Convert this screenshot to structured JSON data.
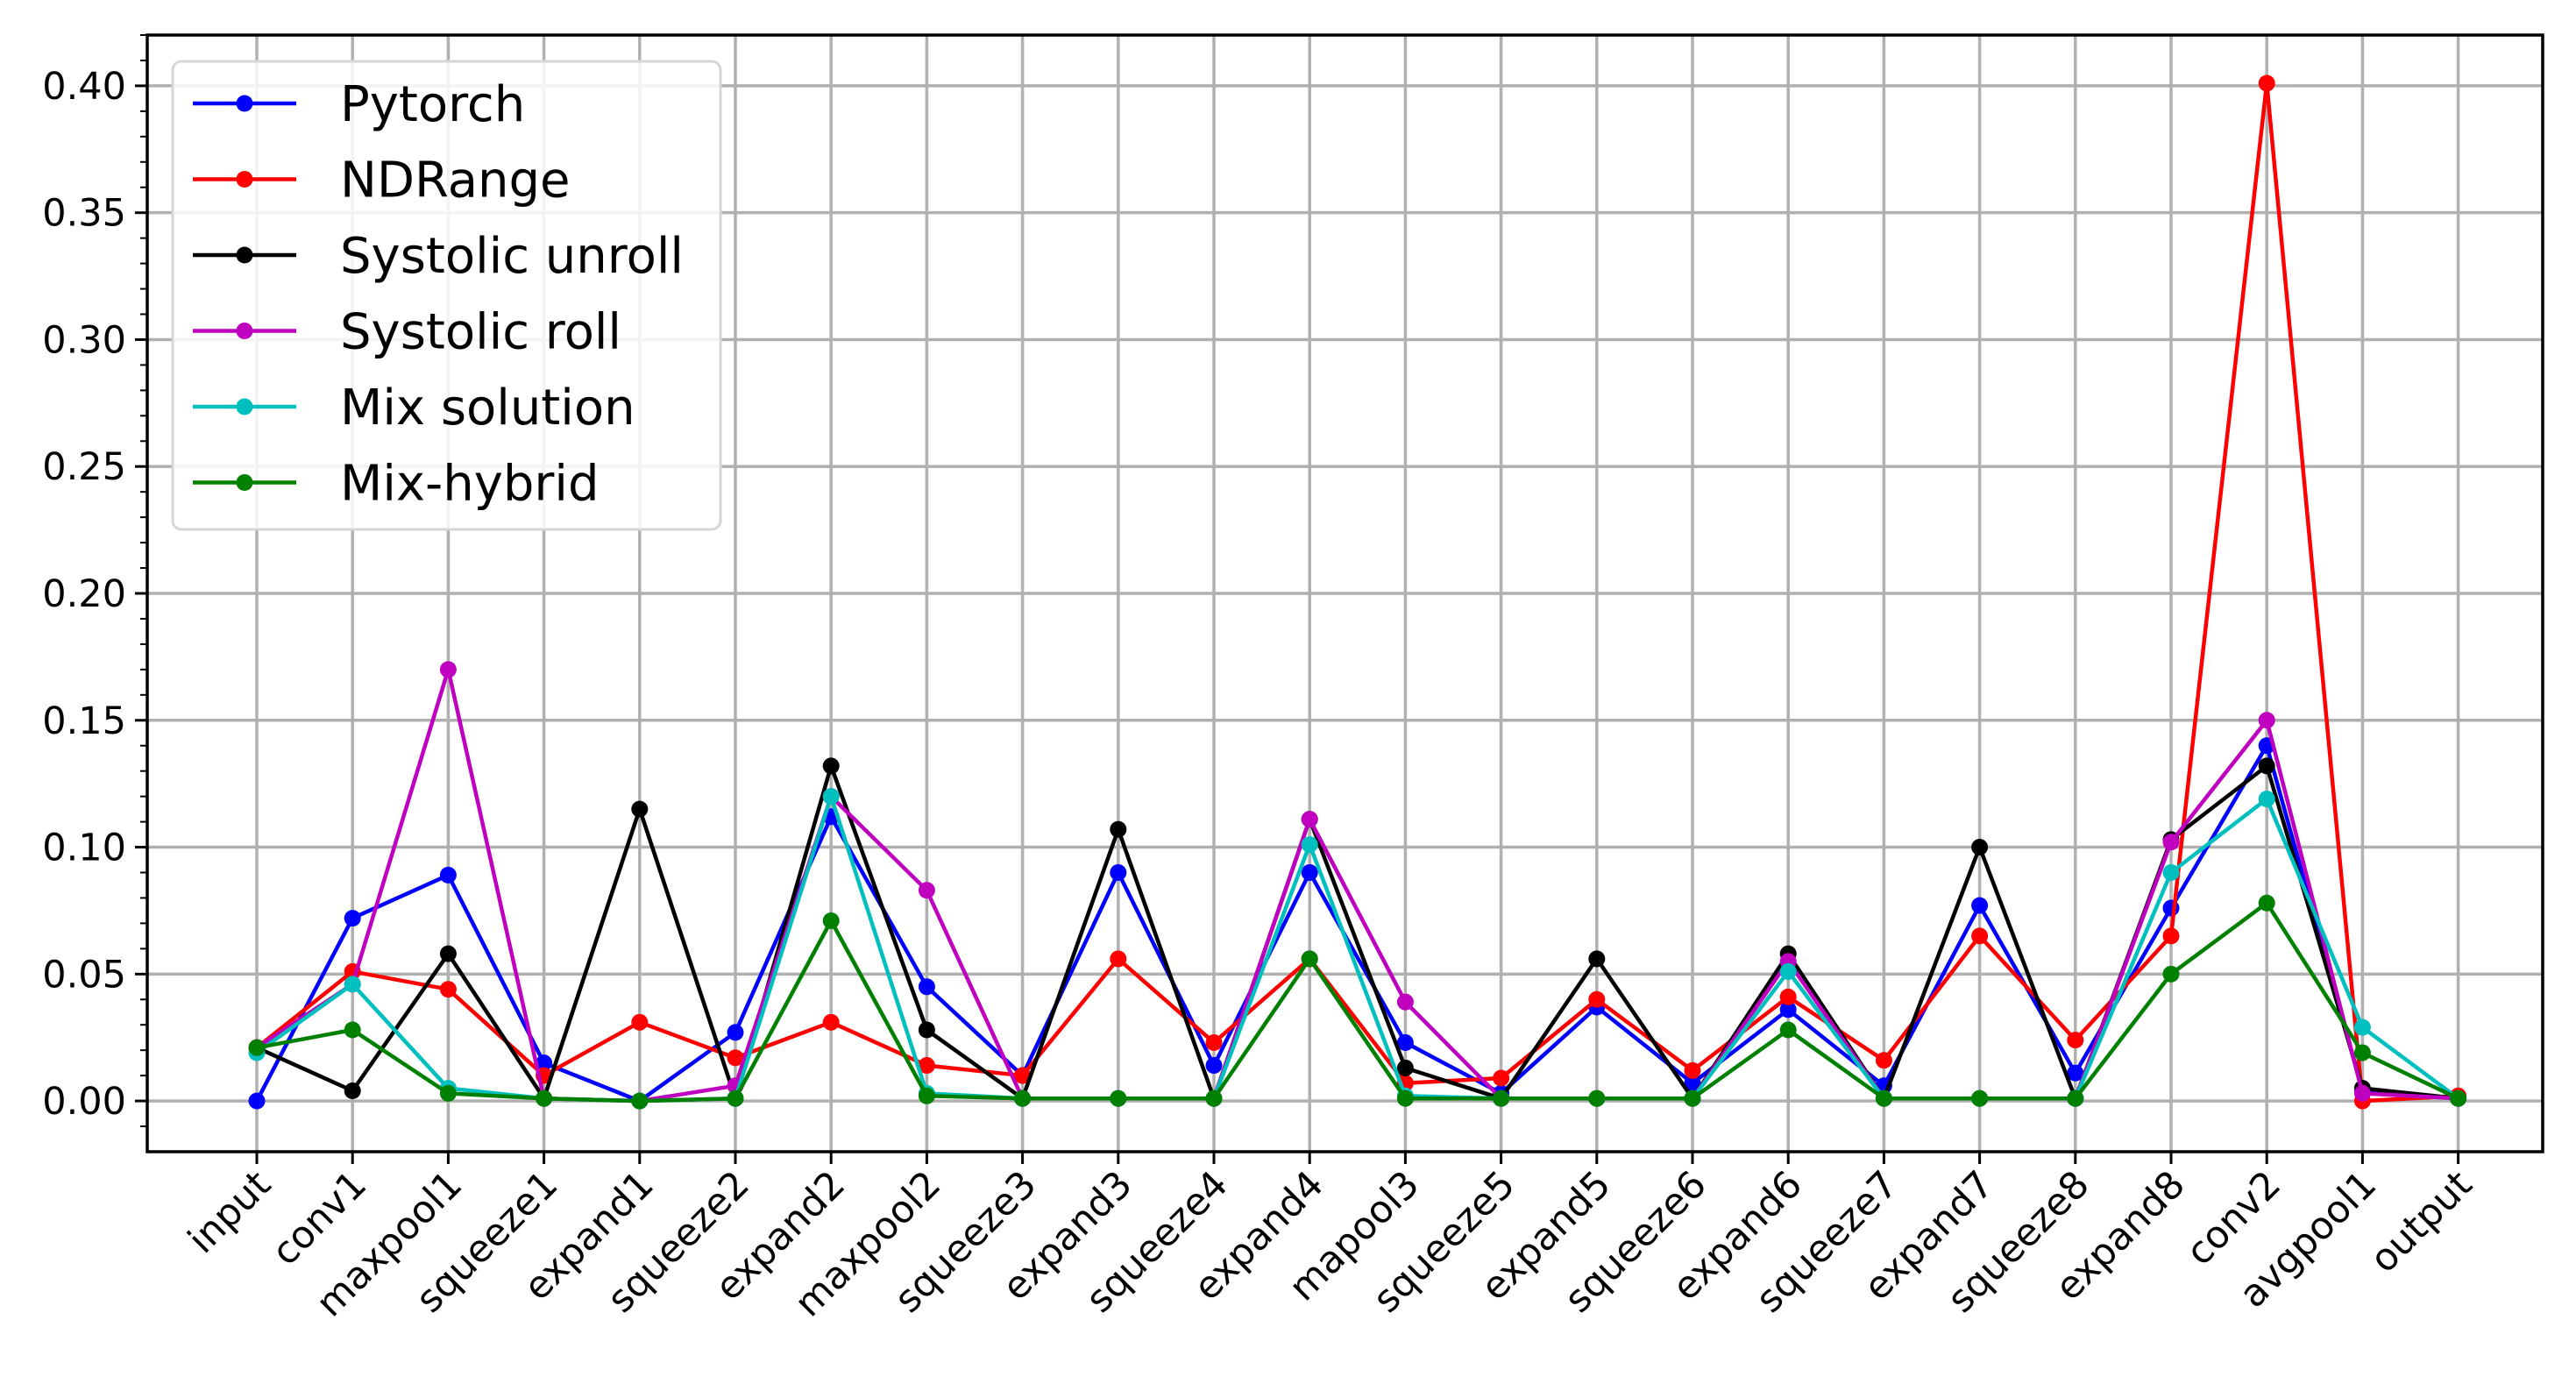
{
  "chart_data": {
    "type": "line",
    "title": "",
    "xlabel": "",
    "ylabel": "",
    "categories": [
      "input",
      "conv1",
      "maxpool1",
      "squeeze1",
      "expand1",
      "squeeze2",
      "expand2",
      "maxpool2",
      "squeeze3",
      "expand3",
      "squeeze4",
      "expand4",
      "mapool3",
      "squeeze5",
      "expand5",
      "squeeze6",
      "expand6",
      "squeeze7",
      "expand7",
      "squeeze8",
      "expand8",
      "conv2",
      "avgpool1",
      "output"
    ],
    "ylim": [
      -0.02,
      0.42
    ],
    "yticks": [
      0.0,
      0.05,
      0.1,
      0.15,
      0.2,
      0.25,
      0.3,
      0.35,
      0.4
    ],
    "ytick_labels": [
      "0.00",
      "0.05",
      "0.10",
      "0.15",
      "0.20",
      "0.25",
      "0.30",
      "0.35",
      "0.40"
    ],
    "grid": true,
    "legend_position": "top-left",
    "series": [
      {
        "name": "Pytorch",
        "color": "#0000ff",
        "values": [
          0.0,
          0.072,
          0.089,
          0.015,
          0.0,
          0.027,
          0.112,
          0.045,
          0.01,
          0.09,
          0.014,
          0.09,
          0.023,
          0.003,
          0.037,
          0.007,
          0.036,
          0.006,
          0.077,
          0.011,
          0.076,
          0.14,
          0.004,
          0.001
        ]
      },
      {
        "name": "NDRange",
        "color": "#ff0000",
        "values": [
          0.021,
          0.051,
          0.044,
          0.01,
          0.031,
          0.017,
          0.031,
          0.014,
          0.01,
          0.056,
          0.023,
          0.056,
          0.007,
          0.009,
          0.04,
          0.012,
          0.041,
          0.016,
          0.065,
          0.024,
          0.065,
          0.401,
          0.0,
          0.002
        ]
      },
      {
        "name": "Systolic unroll",
        "color": "#000000",
        "values": [
          0.021,
          0.004,
          0.058,
          0.001,
          0.115,
          0.001,
          0.132,
          0.028,
          0.001,
          0.107,
          0.001,
          0.111,
          0.013,
          0.001,
          0.056,
          0.001,
          0.058,
          0.001,
          0.1,
          0.001,
          0.103,
          0.132,
          0.005,
          0.001
        ]
      },
      {
        "name": "Systolic roll",
        "color": "#bf00bf",
        "values": [
          0.021,
          0.046,
          0.17,
          0.001,
          0.0,
          0.006,
          0.12,
          0.083,
          0.001,
          0.001,
          0.001,
          0.111,
          0.039,
          0.001,
          0.001,
          0.001,
          0.055,
          0.001,
          0.001,
          0.001,
          0.102,
          0.15,
          0.003,
          0.001
        ]
      },
      {
        "name": "Mix solution",
        "color": "#00bfbf",
        "values": [
          0.019,
          0.046,
          0.005,
          0.001,
          0.0,
          0.001,
          0.12,
          0.003,
          0.001,
          0.001,
          0.001,
          0.101,
          0.002,
          0.001,
          0.001,
          0.001,
          0.051,
          0.001,
          0.001,
          0.001,
          0.09,
          0.119,
          0.029,
          0.001
        ]
      },
      {
        "name": "Mix-hybrid",
        "color": "#008000",
        "values": [
          0.021,
          0.028,
          0.003,
          0.001,
          0.0,
          0.001,
          0.071,
          0.002,
          0.001,
          0.001,
          0.001,
          0.056,
          0.001,
          0.001,
          0.001,
          0.001,
          0.028,
          0.001,
          0.001,
          0.001,
          0.05,
          0.078,
          0.019,
          0.001
        ]
      }
    ]
  }
}
